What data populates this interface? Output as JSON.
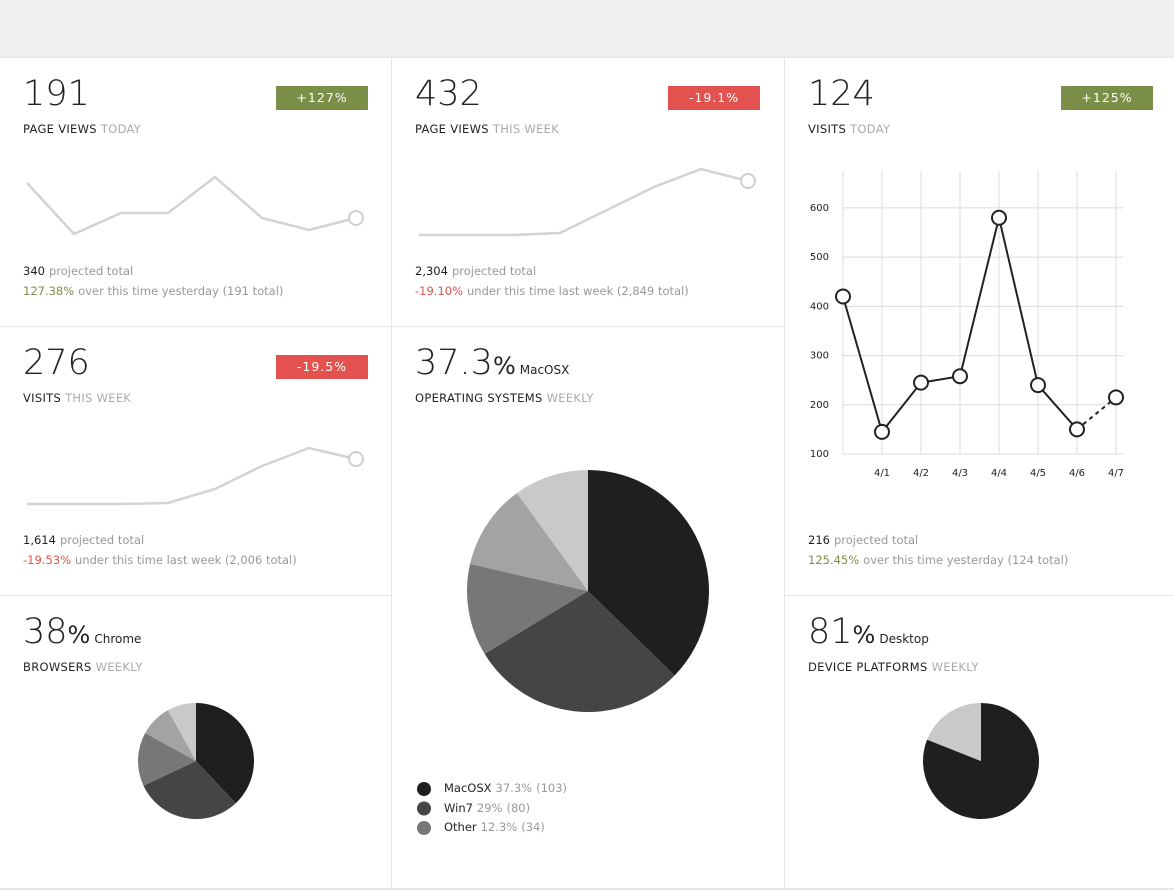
{
  "colors": {
    "up": "#7b8f48",
    "down": "#e3524f"
  },
  "cards": [
    {
      "value": "191",
      "title": "PAGE VIEWS",
      "period": "TODAY",
      "badge": "+127%",
      "trend": "up",
      "sparkline": [
        85,
        34,
        55,
        55,
        91,
        50,
        38,
        50
      ],
      "projected": "340",
      "projected_label": "projected total",
      "change": "127.38%",
      "change_text": "over this time yesterday (191 total)"
    },
    {
      "value": "432",
      "title": "PAGE VIEWS",
      "period": "THIS WEEK",
      "badge": "-19.1%",
      "trend": "down",
      "sparkline": [
        33,
        33,
        33,
        35,
        58,
        81,
        99,
        87
      ],
      "projected": "2,304",
      "projected_label": "projected total",
      "change": "-19.10%",
      "change_text": "under this time last week (2,849 total)"
    },
    {
      "value": "124",
      "title": "VISITS",
      "period": "TODAY",
      "badge": "+125%",
      "trend": "up",
      "chart": {
        "type": "line",
        "categories": [
          null,
          "4/1",
          "4/2",
          "4/3",
          "4/4",
          "4/5",
          "4/6",
          "4/7"
        ],
        "values": [
          420,
          145,
          245,
          258,
          580,
          240,
          150,
          215
        ],
        "ylim": [
          100,
          675
        ],
        "yticks": [
          100,
          200,
          300,
          400,
          500,
          600
        ],
        "grid": true,
        "dashed_last": true,
        "color": "#222222"
      },
      "projected": "216",
      "projected_label": "projected total",
      "change": "125.45%",
      "change_text": "over this time yesterday (124 total)"
    },
    {
      "value": "276",
      "title": "VISITS",
      "period": "THIS WEEK",
      "badge": "-19.5%",
      "trend": "down",
      "sparkline": [
        33,
        33,
        33,
        34,
        48,
        71,
        89,
        78
      ],
      "projected": "1,614",
      "projected_label": "projected total",
      "change": "-19.53%",
      "change_text": "under this time last week (2,006 total)"
    },
    {
      "value": "37.3",
      "unit": "%",
      "label": "MacOSX",
      "title": "OPERATING SYSTEMS",
      "period": "WEEKLY",
      "pie": {
        "type": "pie",
        "values": [
          37.3,
          29,
          12.3,
          11.4,
          10
        ],
        "colors": [
          "#1f1f1f",
          "#454545",
          "#777777",
          "#a3a3a3",
          "#c9c9c9"
        ],
        "names": [
          "MacOSX",
          "Win7",
          "Other",
          null,
          null
        ],
        "value_labels": [
          "37.3%",
          "29%",
          "12.3%",
          null,
          null
        ],
        "counts": [
          "(103)",
          "(80)",
          "(34)",
          null,
          null
        ]
      }
    },
    {
      "value": "38",
      "unit": "%",
      "label": "Chrome",
      "title": "BROWSERS",
      "period": "WEEKLY",
      "pie": {
        "type": "pie",
        "values": [
          38,
          30,
          15,
          9,
          8
        ],
        "colors": [
          "#1f1f1f",
          "#454545",
          "#777777",
          "#a3a3a3",
          "#c9c9c9"
        ]
      }
    },
    {
      "value": "81",
      "unit": "%",
      "label": "Desktop",
      "title": "DEVICE PLATFORMS",
      "period": "WEEKLY",
      "pie": {
        "type": "pie",
        "values": [
          81,
          19
        ],
        "colors": [
          "#1f1f1f",
          "#c9c9c9"
        ]
      }
    }
  ]
}
